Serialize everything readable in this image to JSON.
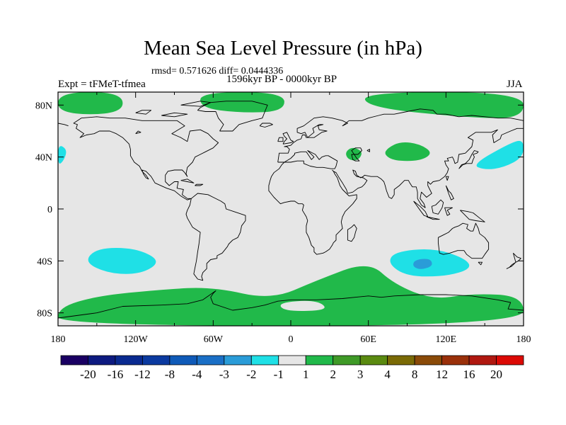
{
  "figure": {
    "title": "Mean Sea Level Pressure (in hPa)",
    "stats": "rmsd= 0.571626 diff= 0.0444336",
    "experiment": "Expt = tFMeT-tfmea",
    "period": "1596kyr BP - 0000kyr BP",
    "season": "JJA"
  },
  "axes": {
    "y_ticks": [
      "80N",
      "40N",
      "0",
      "40S",
      "80S"
    ],
    "x_ticks": [
      "180",
      "120W",
      "60W",
      "0",
      "60E",
      "120E",
      "180"
    ]
  },
  "colorbar": {
    "labels": [
      "-20",
      "-16",
      "-12",
      "-8",
      "-4",
      "-3",
      "-2",
      "-1",
      "1",
      "2",
      "3",
      "4",
      "8",
      "12",
      "16",
      "20"
    ],
    "colors": [
      "#1a0063",
      "#0d1a80",
      "#0a2a90",
      "#0b3aa0",
      "#0f5ab8",
      "#1a6fc6",
      "#2a9cd8",
      "#1fe0e6",
      "#e6e6e6",
      "#21b94a",
      "#3f9a27",
      "#5a8a10",
      "#7a6a05",
      "#8a4a08",
      "#9a300a",
      "#b01810",
      "#dc0a05"
    ]
  },
  "chart_data": {
    "type": "heatmap",
    "title": "Mean Sea Level Pressure (in hPa)",
    "variable": "Mean sea level pressure difference",
    "units": "hPa",
    "xlabel": "",
    "ylabel": "",
    "xlim": [
      -180,
      180
    ],
    "ylim": [
      -90,
      90
    ],
    "contour_levels": [
      -20,
      -16,
      -12,
      -8,
      -4,
      -3,
      -2,
      -1,
      1,
      2,
      3,
      4,
      8,
      12,
      16,
      20
    ],
    "anomaly_regions": [
      {
        "name": "arctic-atlantic-positive",
        "category": "1 to 2",
        "lon": [
          -70,
          -5,
          -5,
          -40,
          -70
        ],
        "lat": [
          90,
          90,
          75,
          74,
          78
        ]
      },
      {
        "name": "arctic-siberia-positive",
        "category": "1 to 2",
        "lon": [
          55,
          180,
          180,
          140,
          60
        ],
        "lat": [
          90,
          90,
          70,
          70,
          78
        ]
      },
      {
        "name": "arctic-pacific-positive",
        "category": "1 to 2",
        "lon": [
          -180,
          -130,
          -130,
          -180
        ],
        "lat": [
          90,
          90,
          73,
          73
        ]
      },
      {
        "name": "central-asia-positive",
        "category": "1 to 2",
        "lon": [
          75,
          85,
          100,
          110,
          100,
          80,
          72
        ],
        "lat": [
          47,
          52,
          50,
          43,
          37,
          37,
          42
        ]
      },
      {
        "name": "caspian-positive",
        "category": "1 to 2",
        "lon": [
          42,
          48,
          56,
          52,
          44
        ],
        "lat": [
          44,
          48,
          44,
          37,
          38
        ]
      },
      {
        "name": "north-pacific-negative",
        "category": "-2 to -1",
        "lon": [
          140,
          150,
          165,
          180,
          180,
          168
        ],
        "lat": [
          34,
          30,
          32,
          40,
          54,
          50
        ]
      },
      {
        "name": "north-atlantic-edge-negative",
        "category": "-2 to -1",
        "lon": [
          -180,
          -173,
          -175,
          -180
        ],
        "lat": [
          50,
          46,
          38,
          33
        ]
      },
      {
        "name": "south-pacific-negative",
        "category": "-2 to -1",
        "lon": [
          -150,
          -120,
          -100,
          -115,
          -140,
          -160
        ],
        "lat": [
          -30,
          -30,
          -40,
          -50,
          -50,
          -41
        ]
      },
      {
        "name": "south-indian-negative",
        "category": "-2 to -1",
        "lon": [
          80,
          110,
          135,
          140,
          120,
          90,
          75
        ],
        "lat": [
          -33,
          -30,
          -38,
          -46,
          -52,
          -52,
          -42
        ]
      },
      {
        "name": "south-indian-core",
        "category": "-3 to -2",
        "lon": [
          96,
          108,
          110,
          100,
          94
        ],
        "lat": [
          -39,
          -38,
          -44,
          -47,
          -44
        ]
      },
      {
        "name": "southern-ocean-positive",
        "category": "1 to 2",
        "lon": [
          -180,
          -150,
          -100,
          -60,
          -15,
          20,
          60,
          80,
          110,
          140,
          180,
          180,
          -180
        ],
        "lat": [
          -76,
          -67,
          -62,
          -60,
          -70,
          -55,
          -40,
          -58,
          -70,
          -65,
          -67,
          -90,
          -90
        ]
      },
      {
        "name": "antarctic-weddell-gap",
        "category": "-1 to 1",
        "lon": [
          -10,
          20,
          30,
          -5
        ],
        "lat": [
          -72,
          -70,
          -78,
          -79
        ]
      }
    ]
  }
}
